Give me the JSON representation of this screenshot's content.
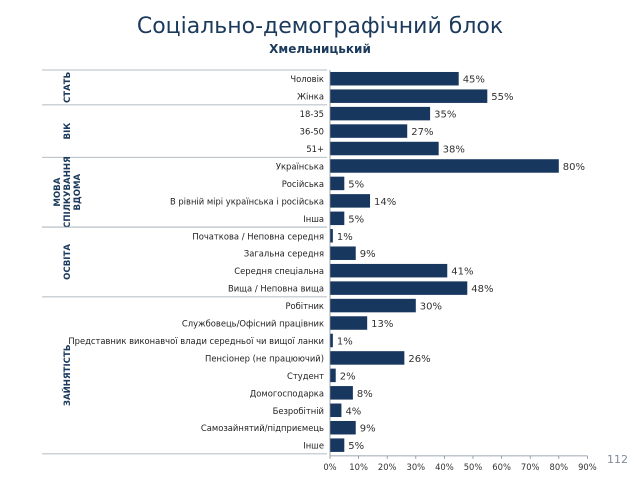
{
  "header": {
    "title": "Соціально-демографічний блок",
    "subtitle": "Хмельницький"
  },
  "page_number": "112",
  "colors": {
    "bar": "#17375e",
    "text": "#1b3a5c",
    "separator": "#9aa6b2"
  },
  "chart_data": {
    "type": "bar",
    "orientation": "horizontal",
    "title": "Соціально-демографічний блок",
    "subtitle": "Хмельницький",
    "value_suffix": "%",
    "xlim": [
      0,
      90
    ],
    "x_ticks": [
      "0%",
      "10%",
      "20%",
      "30%",
      "40%",
      "50%",
      "60%",
      "70%",
      "80%",
      "90%"
    ],
    "grid": false,
    "groups": [
      {
        "name": "СТАТЬ",
        "items": [
          {
            "label": "Чоловік",
            "value": 45
          },
          {
            "label": "Жінка",
            "value": 55
          }
        ]
      },
      {
        "name": "ВІК",
        "items": [
          {
            "label": "18-35",
            "value": 35
          },
          {
            "label": "36-50",
            "value": 27
          },
          {
            "label": "51+",
            "value": 38
          }
        ]
      },
      {
        "name": "МОВА СПІЛКУВАННЯ ВДОМА",
        "items": [
          {
            "label": "Українська",
            "value": 80
          },
          {
            "label": "Російська",
            "value": 5
          },
          {
            "label": "В рівній мірі українська і російська",
            "value": 14
          },
          {
            "label": "Інша",
            "value": 5
          }
        ]
      },
      {
        "name": "ОСВІТА",
        "items": [
          {
            "label": "Початкова / Неповна середня",
            "value": 1
          },
          {
            "label": "Загальна середня",
            "value": 9
          },
          {
            "label": "Середня спеціальна",
            "value": 41
          },
          {
            "label": "Вища / Неповна вища",
            "value": 48
          }
        ]
      },
      {
        "name": "ЗАЙНЯТІСТЬ",
        "items": [
          {
            "label": "Робітник",
            "value": 30
          },
          {
            "label": "Службовець/Офісний працівник",
            "value": 13
          },
          {
            "label": "Представник виконавчої влади середньої чи вищої ланки",
            "value": 1
          },
          {
            "label": "Пенсіонер (не працюючий)",
            "value": 26
          },
          {
            "label": "Студент",
            "value": 2
          },
          {
            "label": "Домогосподарка",
            "value": 8
          },
          {
            "label": "Безробітній",
            "value": 4
          },
          {
            "label": "Самозайнятий/підприємець",
            "value": 9
          },
          {
            "label": "Інше",
            "value": 5
          }
        ]
      }
    ]
  }
}
